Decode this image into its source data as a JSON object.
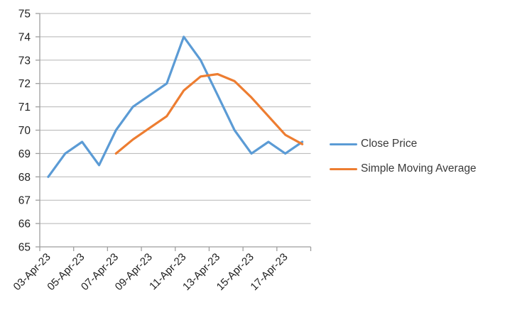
{
  "chart_data": {
    "type": "line",
    "title": "",
    "xlabel": "",
    "ylabel": "",
    "x": [
      "03-Apr-23",
      "04-Apr-23",
      "05-Apr-23",
      "06-Apr-23",
      "07-Apr-23",
      "08-Apr-23",
      "09-Apr-23",
      "10-Apr-23",
      "11-Apr-23",
      "12-Apr-23",
      "13-Apr-23",
      "14-Apr-23",
      "15-Apr-23",
      "16-Apr-23",
      "17-Apr-23",
      "18-Apr-23"
    ],
    "x_tick_labels": [
      "03-Apr-23",
      "05-Apr-23",
      "07-Apr-23",
      "09-Apr-23",
      "11-Apr-23",
      "13-Apr-23",
      "15-Apr-23",
      "17-Apr-23"
    ],
    "x_label_interval": 2,
    "y_tick_labels": [
      "65",
      "66",
      "67",
      "68",
      "69",
      "70",
      "71",
      "72",
      "73",
      "74",
      "75"
    ],
    "ylim": [
      65,
      75
    ],
    "y_tick_step": 1,
    "grid": "horizontal",
    "legend_position": "right",
    "series": [
      {
        "name": "Close Price",
        "color": "#5B9BD5",
        "start_index": 0,
        "values": [
          68,
          69,
          69.5,
          68.5,
          70,
          71,
          71.5,
          72,
          74,
          73,
          71.5,
          70,
          69,
          69.5,
          69,
          69.5
        ]
      },
      {
        "name": "Simple Moving Average",
        "color": "#ED7D31",
        "start_index": 4,
        "values": [
          69,
          69.6,
          70.1,
          70.6,
          71.7,
          72.3,
          72.4,
          72.1,
          71.4,
          70.6,
          69.8,
          69.4
        ]
      }
    ],
    "colors": {
      "grid": "#b5b5b5",
      "axis": "#9e9e9e",
      "tick_label": "#1f1f1f"
    }
  }
}
